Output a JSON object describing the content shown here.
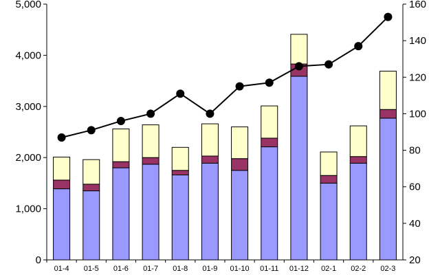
{
  "chart_data": {
    "type": "bar",
    "stacked": true,
    "categories": [
      "01-4",
      "01-5",
      "01-6",
      "01-7",
      "01-8",
      "01-9",
      "01-10",
      "01-11",
      "01-12",
      "02-1",
      "02-2",
      "02-3"
    ],
    "series": [
      {
        "values": [
          1390,
          1350,
          1800,
          1870,
          1660,
          1890,
          1750,
          2210,
          3590,
          1500,
          1890,
          2770
        ],
        "color": "#9999ff",
        "axis": "left"
      },
      {
        "values": [
          170,
          130,
          120,
          130,
          90,
          140,
          230,
          170,
          240,
          150,
          130,
          170
        ],
        "color": "#993366",
        "axis": "left"
      },
      {
        "values": [
          450,
          480,
          640,
          640,
          450,
          630,
          620,
          630,
          580,
          460,
          600,
          750
        ],
        "color": "#ffffcc",
        "axis": "left"
      },
      {
        "type": "line",
        "values": [
          87,
          91,
          96,
          100,
          111,
          100,
          115,
          117,
          126,
          127,
          137,
          153
        ],
        "color": "#000000",
        "axis": "right"
      }
    ],
    "yaxis_left": {
      "min": 0,
      "max": 5000,
      "ticks": [
        0,
        1000,
        2000,
        3000,
        4000,
        5000
      ],
      "tick_labels": [
        "0",
        "1,000",
        "2,000",
        "3,000",
        "4,000",
        "5,000"
      ]
    },
    "yaxis_right": {
      "min": 20,
      "max": 160,
      "ticks": [
        20,
        40,
        60,
        80,
        100,
        120,
        140,
        160
      ],
      "tick_labels": [
        "20",
        "40",
        "60",
        "80",
        "100",
        "120",
        "140",
        "160"
      ]
    },
    "grid": false,
    "legend": "none"
  }
}
